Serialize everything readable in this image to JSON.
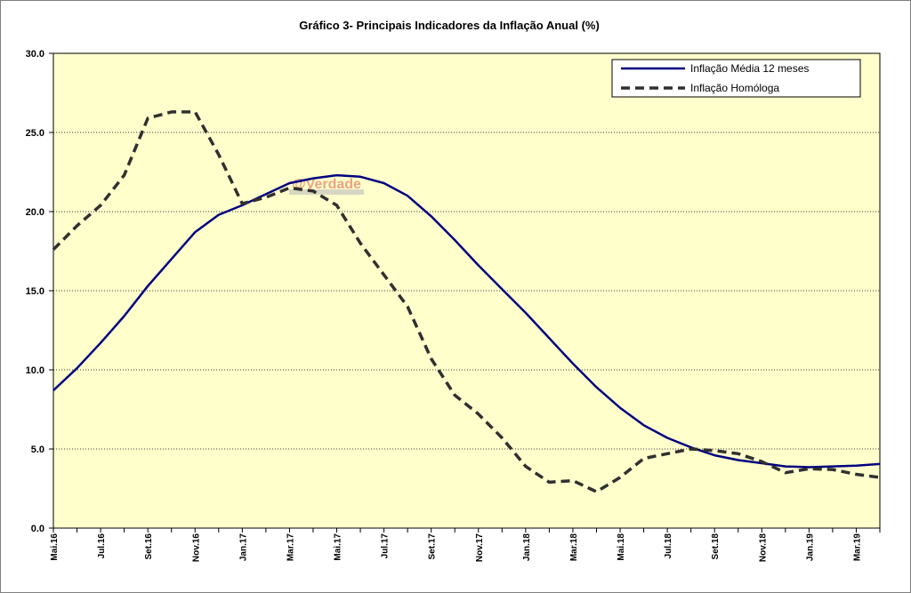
{
  "chart_data": {
    "type": "line",
    "title": "Gráfico 3- Principais Indicadores da Inflação Anual (%)",
    "xlabel": "",
    "ylabel": "",
    "ylim": [
      0,
      30
    ],
    "yticks": [
      "0.0",
      "5.0",
      "10.0",
      "15.0",
      "20.0",
      "25.0",
      "30.0"
    ],
    "grid": "horizontal dotted",
    "legend_position": "top-right",
    "background_color": "#ffffcc",
    "watermark": "@Verdade",
    "x_tick_labels": [
      "Mai.16",
      "Jul.16",
      "Set.16",
      "Nov.16",
      "Jan.17",
      "Mar.17",
      "Mai.17",
      "Jul.17",
      "Set.17",
      "Nov.17",
      "Jan.18",
      "Mar.18",
      "Mai.18",
      "Jul.18",
      "Set.18",
      "Nov.18",
      "Jan.19",
      "Mar.19"
    ],
    "months": [
      "Mai.16",
      "Jun.16",
      "Jul.16",
      "Ago.16",
      "Set.16",
      "Out.16",
      "Nov.16",
      "Dez.16",
      "Jan.17",
      "Fev.17",
      "Mar.17",
      "Abr.17",
      "Mai.17",
      "Jun.17",
      "Jul.17",
      "Ago.17",
      "Set.17",
      "Out.17",
      "Nov.17",
      "Dez.17",
      "Jan.18",
      "Fev.18",
      "Mar.18",
      "Abr.18",
      "Mai.18",
      "Jun.18",
      "Jul.18",
      "Ago.18",
      "Set.18",
      "Out.18",
      "Nov.18",
      "Dez.18",
      "Jan.19",
      "Fev.19",
      "Mar.19",
      "Abr.19"
    ],
    "series": [
      {
        "name": "Inflação Média 12 meses",
        "color": "#000080",
        "style": "solid",
        "values": [
          8.7,
          10.1,
          11.7,
          13.4,
          15.3,
          17.0,
          18.7,
          19.8,
          20.4,
          21.1,
          21.8,
          22.1,
          22.3,
          22.2,
          21.8,
          21.0,
          19.7,
          18.2,
          16.6,
          15.1,
          13.6,
          12.0,
          10.4,
          8.9,
          7.6,
          6.5,
          5.7,
          5.1,
          4.6,
          4.3,
          4.1,
          3.9,
          3.85,
          3.9,
          3.95,
          4.05
        ]
      },
      {
        "name": "Inflação Homóloga",
        "color": "#303030",
        "style": "dashed",
        "values": [
          17.6,
          19.1,
          20.4,
          22.3,
          25.9,
          26.3,
          26.3,
          23.6,
          20.5,
          20.9,
          21.5,
          21.3,
          20.4,
          18.0,
          16.0,
          14.0,
          10.7,
          8.4,
          7.2,
          5.7,
          3.9,
          2.9,
          3.0,
          2.3,
          3.2,
          4.4,
          4.7,
          5.0,
          4.9,
          4.7,
          4.2,
          3.5,
          3.75,
          3.7,
          3.4,
          3.2
        ]
      }
    ]
  }
}
